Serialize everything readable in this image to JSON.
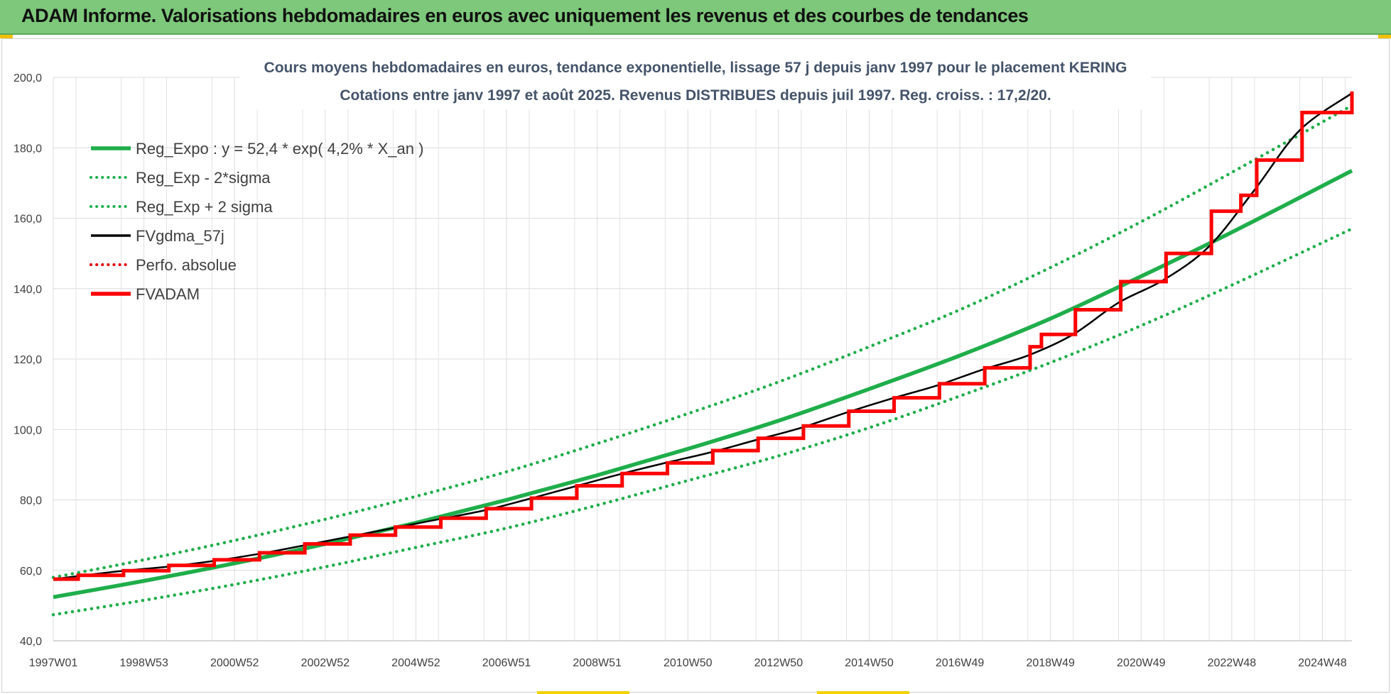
{
  "banner": {
    "title": "ADAM Informe. Valorisations hebdomadaires en euros avec uniquement les revenus et des courbes de tendances",
    "color": "#7dc87a"
  },
  "chart_data": {
    "type": "line",
    "title": "Cours moyens hebdomadaires en euros, tendance exponentielle, lissage 57 j depuis janv 1997 pour le placement KERING",
    "subtitle": "Cotations entre janv 1997 et août 2025.  Revenus DISTRIBUES depuis juil 1997.  Reg. croiss. : 17,2/20.",
    "xlabel": "",
    "ylabel": "",
    "ylim": [
      40,
      200
    ],
    "xlim": [
      1997.0,
      2025.65
    ],
    "yticks": [
      "40,0",
      "60,0",
      "80,0",
      "100,0",
      "120,0",
      "140,0",
      "160,0",
      "180,0",
      "200,0"
    ],
    "xticks": [
      {
        "label": "1997W01",
        "x": 1997.0
      },
      {
        "label": "1998W53",
        "x": 1999.0
      },
      {
        "label": "2000W52",
        "x": 2001.0
      },
      {
        "label": "2002W52",
        "x": 2003.0
      },
      {
        "label": "2004W52",
        "x": 2005.0
      },
      {
        "label": "2006W51",
        "x": 2007.0
      },
      {
        "label": "2008W51",
        "x": 2009.0
      },
      {
        "label": "2010W50",
        "x": 2011.0
      },
      {
        "label": "2012W50",
        "x": 2013.0
      },
      {
        "label": "2014W50",
        "x": 2015.0
      },
      {
        "label": "2016W49",
        "x": 2017.0
      },
      {
        "label": "2018W49",
        "x": 2019.0
      },
      {
        "label": "2020W49",
        "x": 2021.0
      },
      {
        "label": "2022W48",
        "x": 2023.0
      },
      {
        "label": "2024W48",
        "x": 2025.0
      }
    ],
    "grid": true,
    "legend_position": "top-left",
    "series": [
      {
        "name": "Reg_Expo : y = 52,4 * exp( 4,2% *  X_an )",
        "color": "#1fae4b",
        "style": "solid",
        "x": [
          1997.0,
          1999.0,
          2001.0,
          2003.0,
          2005.0,
          2007.0,
          2009.0,
          2011.0,
          2013.0,
          2015.0,
          2017.0,
          2019.0,
          2021.0,
          2023.0,
          2025.65
        ],
        "y": [
          52.4,
          57.0,
          62.0,
          67.5,
          73.5,
          80.0,
          87.0,
          94.5,
          102.5,
          111.5,
          121.0,
          131.5,
          143.5,
          156.0,
          173.5
        ]
      },
      {
        "name": "Reg_Exp - 2*sigma",
        "color": "#1fae4b",
        "style": "dotted",
        "x": [
          1997.0,
          1999.0,
          2001.0,
          2003.0,
          2005.0,
          2007.0,
          2009.0,
          2011.0,
          2013.0,
          2015.0,
          2017.0,
          2019.0,
          2021.0,
          2023.0,
          2025.65
        ],
        "y": [
          47.4,
          51.5,
          56.0,
          61.0,
          66.5,
          72.0,
          78.5,
          85.5,
          92.5,
          100.5,
          109.5,
          119.0,
          129.5,
          141.0,
          157.0
        ]
      },
      {
        "name": "Reg_Exp + 2 sigma",
        "color": "#1fae4b",
        "style": "dotted",
        "x": [
          1997.0,
          1999.0,
          2001.0,
          2003.0,
          2005.0,
          2007.0,
          2009.0,
          2011.0,
          2013.0,
          2015.0,
          2017.0,
          2019.0,
          2021.0,
          2023.0,
          2025.65
        ],
        "y": [
          58.0,
          63.0,
          68.5,
          74.5,
          81.0,
          88.0,
          96.0,
          104.5,
          113.5,
          123.5,
          134.0,
          146.0,
          159.0,
          173.0,
          192.0
        ]
      },
      {
        "name": "FVgdma_57j",
        "color": "#000000",
        "style": "solid",
        "x": [
          1997.0,
          1997.5,
          1998.5,
          1999.5,
          2000.5,
          2001.5,
          2002.5,
          2003.5,
          2004.5,
          2005.5,
          2006.5,
          2007.5,
          2008.5,
          2009.5,
          2010.5,
          2011.5,
          2012.5,
          2013.5,
          2014.5,
          2015.5,
          2016.5,
          2017.5,
          2018.5,
          2019.5,
          2020.5,
          2021.5,
          2022.5,
          2023.5,
          2024.5,
          2025.65
        ],
        "y": [
          57.5,
          58.3,
          59.8,
          61.0,
          62.6,
          64.6,
          67.0,
          69.5,
          72.0,
          74.5,
          77.0,
          80.3,
          83.8,
          87.3,
          90.5,
          93.5,
          97.0,
          100.5,
          104.8,
          108.8,
          112.5,
          117.0,
          121.0,
          127.0,
          136.0,
          142.5,
          152.0,
          168.0,
          185.0,
          195.5
        ]
      },
      {
        "name": "Perfo. absolue",
        "color": "#e00000",
        "style": "dotted",
        "x": [],
        "y": []
      },
      {
        "name": "FVADAM",
        "color": "#ff0000",
        "style": "step",
        "x": [
          1997.0,
          1997.55,
          1998.55,
          1999.55,
          2000.55,
          2001.55,
          2002.55,
          2003.55,
          2004.55,
          2005.55,
          2006.55,
          2007.55,
          2008.55,
          2009.55,
          2010.55,
          2011.55,
          2012.55,
          2013.55,
          2014.55,
          2015.55,
          2016.55,
          2017.55,
          2018.55,
          2018.8,
          2019.55,
          2020.55,
          2021.55,
          2022.55,
          2023.2,
          2023.55,
          2024.55,
          2025.65
        ],
        "y": [
          57.5,
          58.6,
          59.9,
          61.4,
          63.0,
          65.0,
          67.5,
          70.0,
          72.3,
          74.8,
          77.5,
          80.5,
          84.0,
          87.5,
          90.5,
          94.0,
          97.5,
          101.0,
          105.2,
          109.0,
          113.0,
          117.5,
          123.5,
          127.0,
          134.0,
          142.0,
          150.0,
          162.0,
          166.5,
          176.5,
          190.0,
          196.0
        ]
      }
    ]
  }
}
